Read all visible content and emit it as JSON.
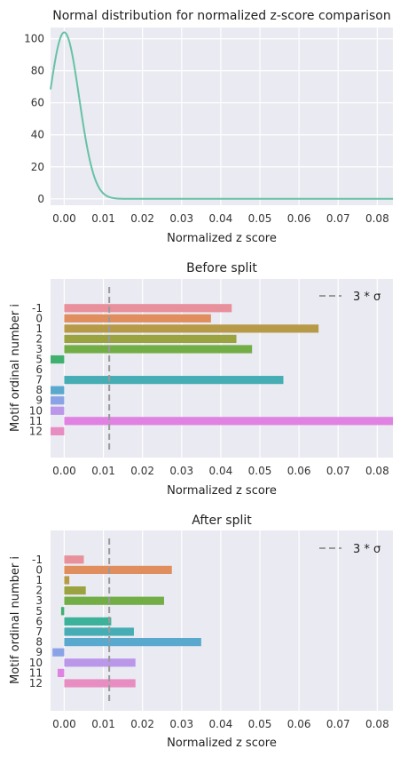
{
  "chart_data": [
    {
      "type": "line",
      "title": "Normal distribution for normalized z-score comparison",
      "xlabel": "Normalized z score",
      "ylabel": "",
      "xlim": [
        -0.0035,
        0.084
      ],
      "ylim": [
        -4,
        107
      ],
      "xticks": [
        "0.00",
        "0.01",
        "0.02",
        "0.03",
        "0.04",
        "0.05",
        "0.06",
        "0.07",
        "0.08"
      ],
      "yticks": [
        "0",
        "20",
        "40",
        "60",
        "80",
        "100"
      ],
      "grid": true,
      "series": [
        {
          "color": "#66c2a5",
          "distribution": {
            "mean": 0.0,
            "sigma": 0.00382,
            "peak": 104
          },
          "x_range": [
            -0.0035,
            0.084
          ]
        }
      ]
    },
    {
      "type": "bar",
      "orientation": "horizontal",
      "title": "Before split",
      "xlabel": "Normalized z score",
      "ylabel": "Motif ordinal number i",
      "xlim": [
        -0.0035,
        0.084
      ],
      "xticks": [
        "0.00",
        "0.01",
        "0.02",
        "0.03",
        "0.04",
        "0.05",
        "0.06",
        "0.07",
        "0.08"
      ],
      "grid": true,
      "categories": [
        "-1",
        "0",
        "1",
        "2",
        "3",
        "5",
        "6",
        "7",
        "8",
        "9",
        "10",
        "11",
        "12"
      ],
      "values": [
        0.0428,
        0.0375,
        0.065,
        0.044,
        0.048,
        -0.004,
        0.0,
        0.056,
        -0.004,
        -0.004,
        -0.004,
        0.085,
        -0.004
      ],
      "colors": [
        "#e8909b",
        "#e08e5e",
        "#b79a48",
        "#9aa33f",
        "#73ad45",
        "#3fb06e",
        "#3cb29a",
        "#46adb4",
        "#59a8cd",
        "#8aa3e6",
        "#bb97e9",
        "#e082e2",
        "#e88dc1"
      ],
      "reference_line": {
        "x": 0.0115,
        "label": "3 * σ"
      },
      "legend_position": "top-right"
    },
    {
      "type": "bar",
      "orientation": "horizontal",
      "title": "After split",
      "xlabel": "Normalized z score",
      "ylabel": "Motif ordinal number i",
      "xlim": [
        -0.0035,
        0.084
      ],
      "xticks": [
        "0.00",
        "0.01",
        "0.02",
        "0.03",
        "0.04",
        "0.05",
        "0.06",
        "0.07",
        "0.08"
      ],
      "grid": true,
      "categories": [
        "-1",
        "0",
        "1",
        "2",
        "3",
        "5",
        "6",
        "7",
        "8",
        "9",
        "10",
        "11",
        "12"
      ],
      "values": [
        0.005,
        0.0275,
        0.0013,
        0.0055,
        0.0255,
        -0.0008,
        0.012,
        0.0178,
        0.035,
        -0.003,
        0.0182,
        -0.0017,
        0.0182
      ],
      "colors": [
        "#e8909b",
        "#e08e5e",
        "#b79a48",
        "#9aa33f",
        "#73ad45",
        "#3fb06e",
        "#3cb29a",
        "#46adb4",
        "#59a8cd",
        "#8aa3e6",
        "#bb97e9",
        "#e082e2",
        "#e88dc1"
      ],
      "reference_line": {
        "x": 0.0115,
        "label": "3 * σ"
      },
      "legend_position": "top-right"
    }
  ]
}
